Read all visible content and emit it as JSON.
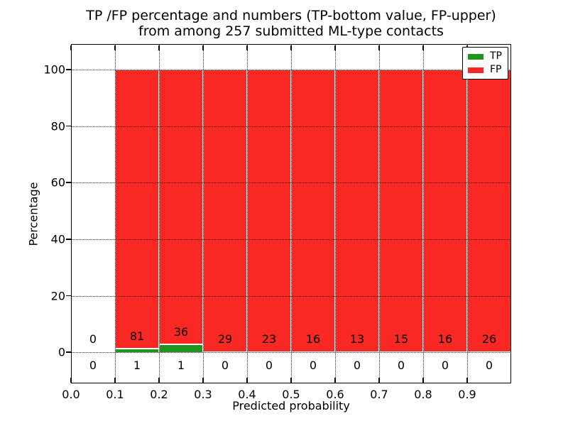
{
  "chart_data": {
    "type": "bar",
    "stacked_percentage": true,
    "title_lines": [
      "TP /FP percentage and numbers (TP-bottom value, FP-upper)",
      "from among 257 submitted ML-type contacts"
    ],
    "xlabel": "Predicted probability",
    "ylabel": "Percentage",
    "xlim": [
      0.0,
      1.0
    ],
    "ylim": [
      -11,
      109
    ],
    "xtick_labels": [
      "0.0",
      "0.1",
      "0.2",
      "0.3",
      "0.4",
      "0.5",
      "0.6",
      "0.7",
      "0.8",
      "0.9"
    ],
    "xtick_values": [
      0.0,
      0.1,
      0.2,
      0.3,
      0.4,
      0.5,
      0.6,
      0.7,
      0.8,
      0.9
    ],
    "ytick_labels": [
      "0",
      "20",
      "40",
      "60",
      "80",
      "100"
    ],
    "ytick_values": [
      0,
      20,
      40,
      60,
      80,
      100
    ],
    "bin_edges": [
      0.0,
      0.1,
      0.2,
      0.3,
      0.4,
      0.5,
      0.6,
      0.7,
      0.8,
      0.9,
      1.0
    ],
    "series": [
      {
        "name": "TP",
        "color": "#209320",
        "counts": [
          0,
          1,
          1,
          0,
          0,
          0,
          0,
          0,
          0,
          0
        ]
      },
      {
        "name": "FP",
        "color": "#f92823",
        "counts": [
          0,
          81,
          36,
          29,
          23,
          16,
          13,
          15,
          16,
          26
        ]
      }
    ],
    "tp_percent": [
      0,
      1.22,
      2.7,
      0,
      0,
      0,
      0,
      0,
      0,
      0
    ],
    "fp_percent": [
      0,
      98.78,
      97.3,
      100,
      100,
      100,
      100,
      100,
      100,
      100
    ],
    "grid": true,
    "legend": {
      "position": "upper right",
      "entries": [
        {
          "label": "TP",
          "color": "#209320"
        },
        {
          "label": "FP",
          "color": "#f92823"
        }
      ]
    }
  }
}
